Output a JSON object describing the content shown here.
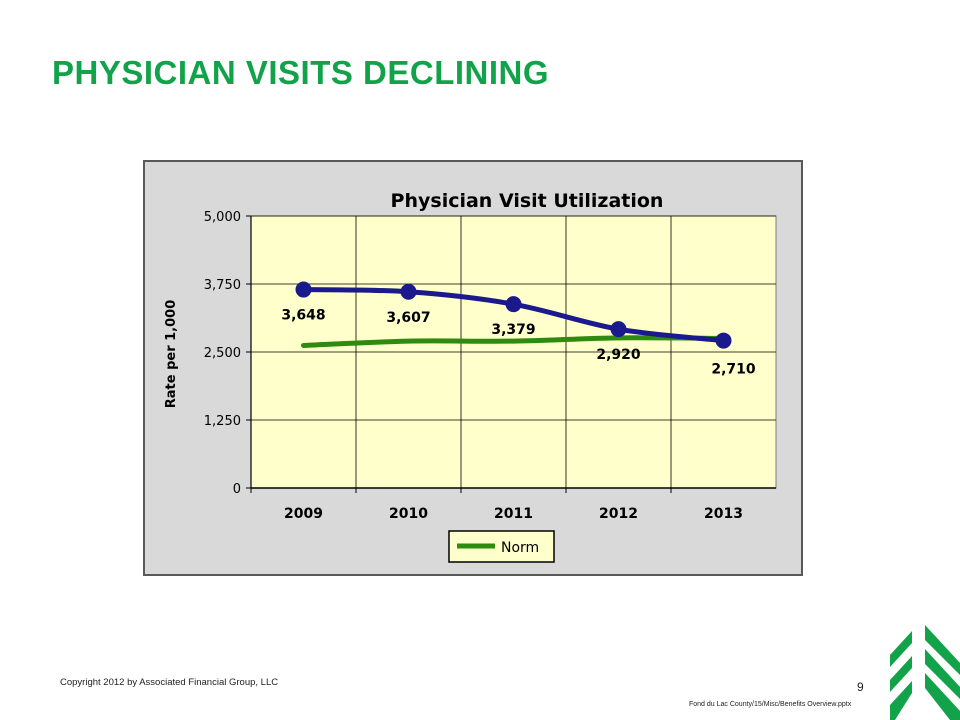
{
  "slide": {
    "title": "PHYSICIAN VISITS DECLINING",
    "copyright": "Copyright 2012 by Associated Financial Group, LLC",
    "page_number": "9",
    "file_path": "Fond du Lac County/15/Misc/Benefits Overview.pptx"
  },
  "colors": {
    "title": "#12a34a",
    "plot_background": "#ffffcc",
    "chart_background": "#d9d9d9",
    "actual_series": "#1a1a8c",
    "norm_series": "#2e8b10",
    "logo": "#12a34a"
  },
  "icons": {
    "logo": "green-chevron-tree-logo"
  },
  "chart_data": {
    "type": "line",
    "title": "Physician Visit Utilization",
    "xlabel": "",
    "ylabel": "Rate per 1,000",
    "categories": [
      "2009",
      "2010",
      "2011",
      "2012",
      "2013"
    ],
    "ylim": [
      0,
      5000
    ],
    "yticks": [
      0,
      1250,
      2500,
      3750,
      5000
    ],
    "ytick_labels": [
      "0",
      "1,250",
      "2,500",
      "3,750",
      "5,000"
    ],
    "grid": true,
    "legend_position": "bottom-center",
    "series": [
      {
        "values": [
          3648,
          3607,
          3379,
          2920,
          2710
        ],
        "labels": [
          "3,648",
          "3,607",
          "3,379",
          "2,920",
          "2,710"
        ],
        "markers": true
      },
      {
        "name": "Norm",
        "values": [
          2620,
          2700,
          2700,
          2760,
          2750
        ],
        "markers": false
      }
    ]
  }
}
